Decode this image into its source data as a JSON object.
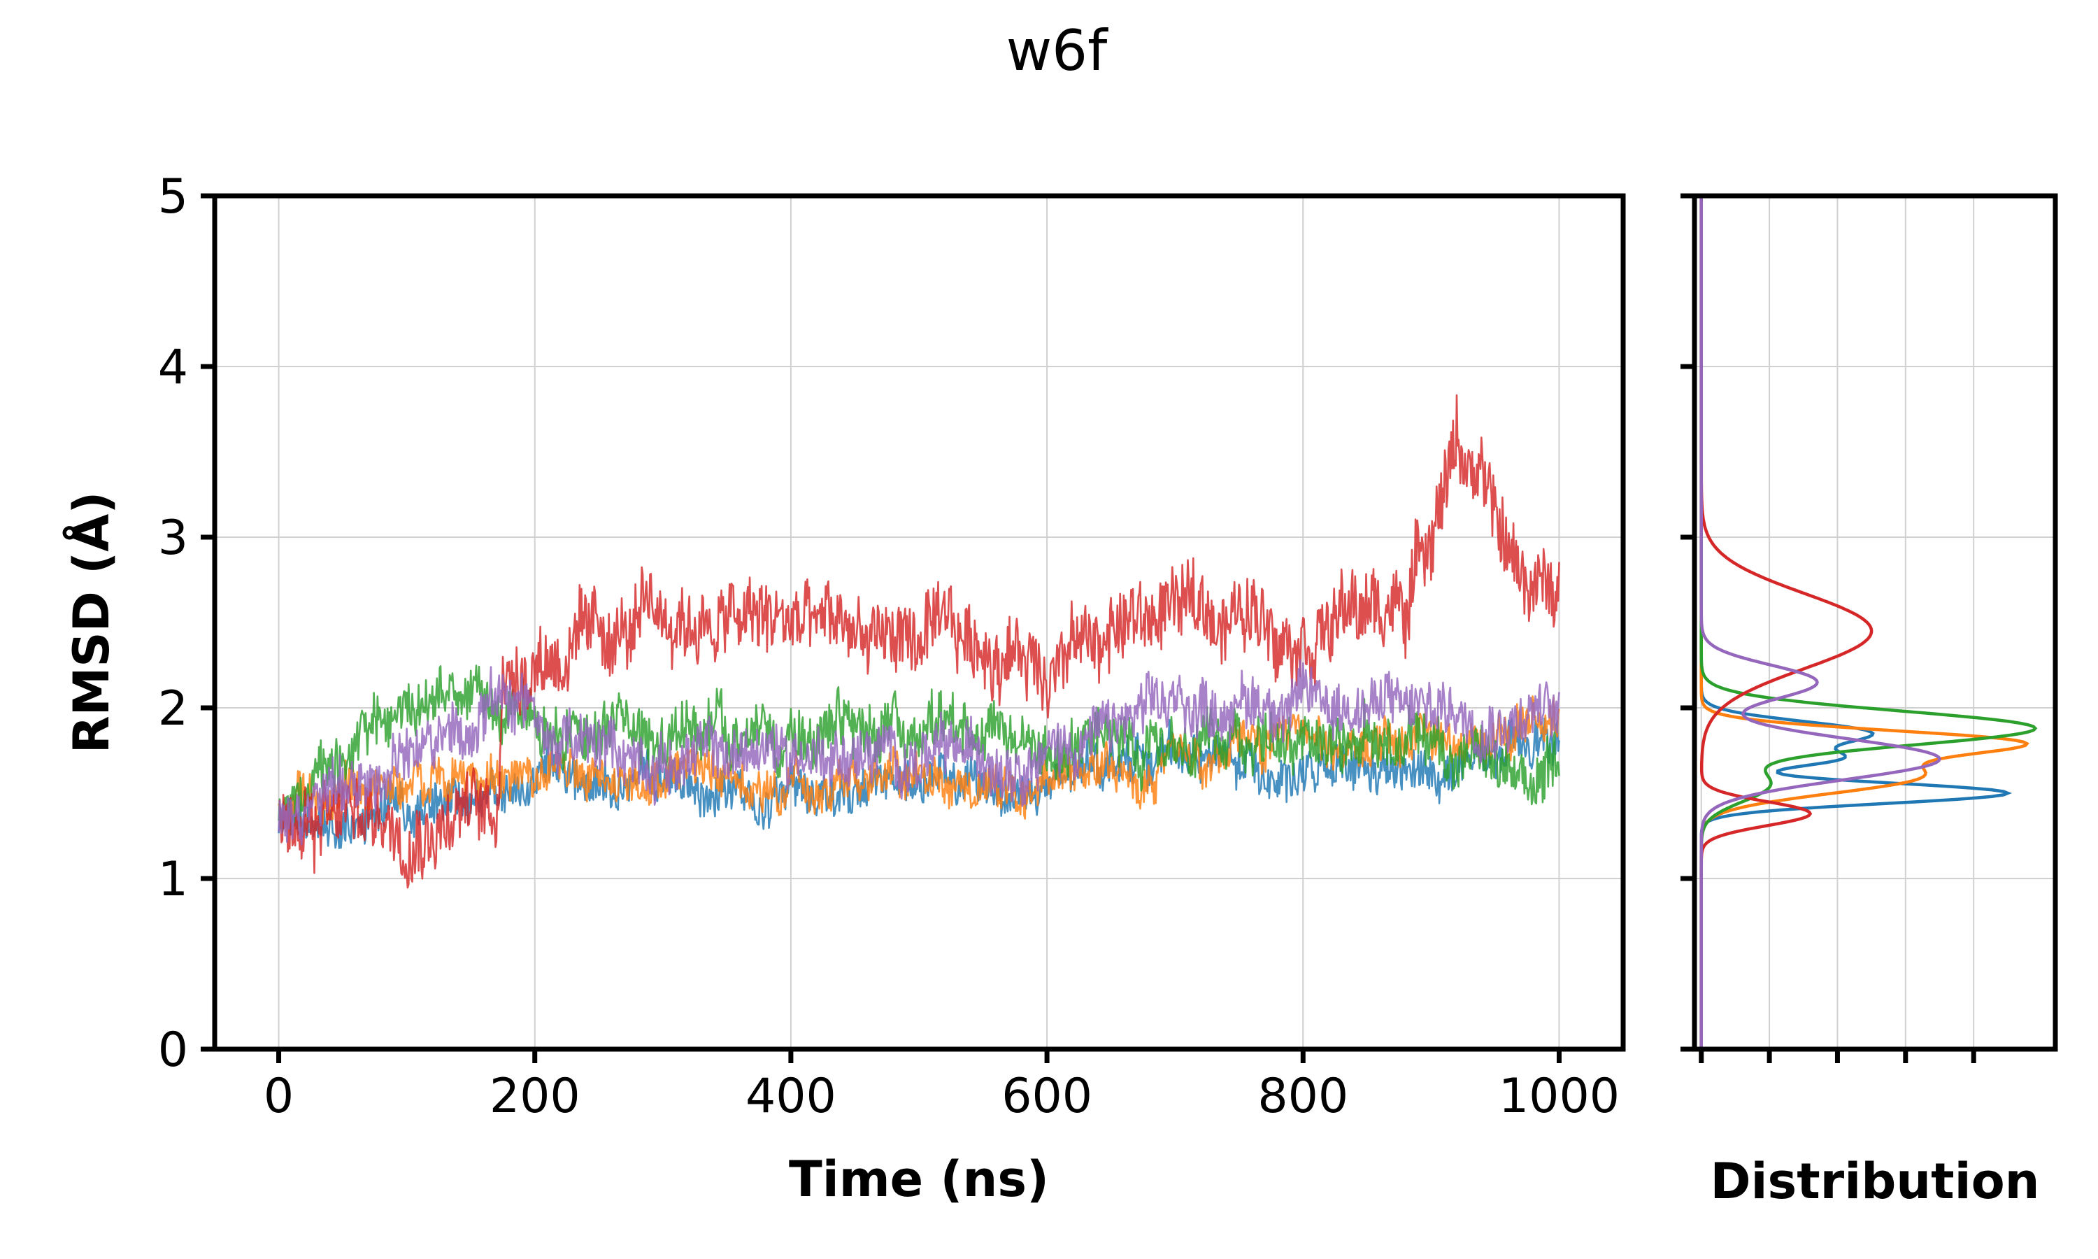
{
  "figure": {
    "title": "w6f"
  },
  "chart_data": [
    {
      "type": "line",
      "title": "w6f",
      "xlabel": "Time (ns)",
      "ylabel": "RMSD (Å)",
      "xlim": [
        -50,
        1050
      ],
      "ylim": [
        0,
        5
      ],
      "xticks": [
        0,
        200,
        400,
        600,
        800,
        1000
      ],
      "yticks": [
        0,
        1,
        2,
        3,
        4,
        5
      ],
      "xtick_labels": [
        "0",
        "200",
        "400",
        "600",
        "800",
        "1000"
      ],
      "ytick_labels": [
        "0",
        "1",
        "2",
        "3",
        "4",
        "5"
      ],
      "grid": true,
      "colors": [
        "#1f77b4",
        "#ff7f0e",
        "#2ca02c",
        "#d62728",
        "#9467bd"
      ],
      "series": [
        {
          "color": "#1f77b4",
          "noise": 0.07,
          "x": [
            0,
            50,
            100,
            150,
            180,
            200,
            300,
            400,
            500,
            600,
            650,
            700,
            800,
            900,
            1000
          ],
          "y": [
            1.3,
            1.35,
            1.4,
            1.45,
            1.5,
            1.55,
            1.55,
            1.5,
            1.55,
            1.5,
            1.7,
            1.75,
            1.6,
            1.6,
            1.8
          ]
        },
        {
          "color": "#ff7f0e",
          "noise": 0.07,
          "x": [
            0,
            50,
            100,
            150,
            200,
            300,
            400,
            500,
            600,
            700,
            800,
            900,
            1000
          ],
          "y": [
            1.4,
            1.5,
            1.55,
            1.6,
            1.6,
            1.6,
            1.55,
            1.6,
            1.55,
            1.7,
            1.8,
            1.8,
            1.9
          ]
        },
        {
          "color": "#2ca02c",
          "noise": 0.09,
          "x": [
            0,
            50,
            100,
            150,
            200,
            300,
            400,
            500,
            600,
            700,
            800,
            900,
            980,
            1000
          ],
          "y": [
            1.4,
            1.7,
            2.0,
            2.1,
            1.9,
            1.85,
            1.85,
            1.85,
            1.75,
            1.85,
            1.85,
            1.8,
            1.5,
            1.8
          ]
        },
        {
          "color": "#d62728",
          "noise": 0.12,
          "x": [
            0,
            50,
            100,
            170,
            175,
            200,
            300,
            400,
            500,
            600,
            650,
            700,
            800,
            880,
            920,
            960,
            1000
          ],
          "y": [
            1.3,
            1.4,
            1.35,
            1.4,
            2.2,
            2.3,
            2.5,
            2.5,
            2.4,
            2.3,
            2.45,
            2.6,
            2.5,
            2.6,
            3.6,
            2.9,
            2.6
          ]
        },
        {
          "color": "#9467bd",
          "noise": 0.09,
          "x": [
            0,
            50,
            100,
            150,
            190,
            200,
            300,
            400,
            500,
            600,
            700,
            800,
            900,
            1000
          ],
          "y": [
            1.35,
            1.5,
            1.7,
            1.85,
            2.1,
            1.8,
            1.7,
            1.75,
            1.7,
            1.75,
            2.0,
            2.05,
            2.0,
            1.95
          ]
        }
      ]
    },
    {
      "type": "line",
      "xlabel": "Distribution",
      "ylim": [
        0,
        5
      ],
      "xlim": [
        -0.1,
        5.2
      ],
      "xticks": [
        0,
        1,
        2,
        3,
        4
      ],
      "orientation": "vertical",
      "grid": true,
      "series": [
        {
          "color": "#1f77b4",
          "components": [
            {
              "mu": 1.5,
              "sigma": 0.06,
              "amp": 4.5
            },
            {
              "mu": 1.7,
              "sigma": 0.05,
              "amp": 1.8
            },
            {
              "mu": 1.85,
              "sigma": 0.07,
              "amp": 2.5
            }
          ]
        },
        {
          "color": "#ff7f0e",
          "components": [
            {
              "mu": 1.6,
              "sigma": 0.1,
              "amp": 3.2
            },
            {
              "mu": 1.8,
              "sigma": 0.07,
              "amp": 4.3
            }
          ]
        },
        {
          "color": "#2ca02c",
          "components": [
            {
              "mu": 1.55,
              "sigma": 0.1,
              "amp": 1.0
            },
            {
              "mu": 1.88,
              "sigma": 0.1,
              "amp": 4.9
            }
          ]
        },
        {
          "color": "#d62728",
          "components": [
            {
              "mu": 1.38,
              "sigma": 0.07,
              "amp": 1.6
            },
            {
              "mu": 2.45,
              "sigma": 0.22,
              "amp": 2.5
            }
          ]
        },
        {
          "color": "#9467bd",
          "components": [
            {
              "mu": 1.7,
              "sigma": 0.12,
              "amp": 3.5
            },
            {
              "mu": 2.15,
              "sigma": 0.1,
              "amp": 1.7
            }
          ]
        }
      ]
    }
  ]
}
